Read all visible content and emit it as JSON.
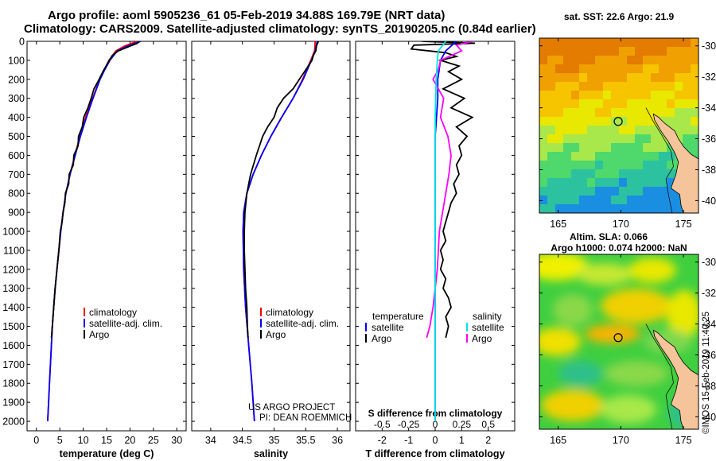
{
  "header": {
    "title_line1": "Argo profile: aoml 5905236_61 05-Feb-2019 34.88S 169.79E (NRT data)",
    "title_line2": "Climatology: CARS2009. Satellite-adjusted climatology: synTS_20190205.nc (0.84d earlier)"
  },
  "credit": {
    "line1": "US ARGO PROJECT",
    "line2": "PI: DEAN ROEMMICH"
  },
  "timestamp": "©IMOS 15-Feb-2019 11:40:25",
  "colors": {
    "climatology": "#ff0000",
    "satellite": "#0000ff",
    "argo": "#000000",
    "s_diff_argo": "#ff00ff",
    "s_diff_sat": "#00e5e5"
  },
  "chart_data": [
    {
      "type": "line",
      "id": "temperature",
      "xlabel": "temperature (deg C)",
      "ylabel": "",
      "xlim": [
        -2,
        32
      ],
      "ylim": [
        2050,
        0
      ],
      "xticks": [
        0,
        5,
        10,
        15,
        20,
        25,
        30
      ],
      "yticks": [
        0,
        100,
        200,
        300,
        400,
        500,
        600,
        700,
        800,
        900,
        1000,
        1100,
        1200,
        1300,
        1400,
        1500,
        1600,
        1700,
        1800,
        1900,
        2000
      ],
      "legend": [
        "climatology",
        "satellite-adj. clim.",
        "Argo"
      ],
      "legend_location": "center-right",
      "series": [
        {
          "name": "climatology",
          "depth": [
            0,
            25,
            50,
            100,
            150,
            200,
            300,
            400,
            500,
            600,
            700,
            800,
            900,
            1000,
            1100,
            1200,
            1300,
            1400,
            1500,
            1600,
            1700,
            1800,
            1900,
            2000
          ],
          "values": [
            21.5,
            18.8,
            17,
            15.5,
            14.5,
            13.5,
            12,
            10.5,
            9.3,
            8.2,
            7.2,
            6.3,
            5.7,
            5.2,
            4.8,
            4.4,
            4.0,
            3.7,
            3.4,
            3.2,
            3.0,
            2.8,
            2.6,
            2.4
          ]
        },
        {
          "name": "satellite-adj. clim.",
          "depth": [
            0,
            25,
            50,
            100,
            150,
            200,
            300,
            400,
            500,
            600,
            700,
            800,
            900,
            1000,
            1100,
            1200,
            1300,
            1400,
            1500,
            1600,
            1700,
            1800,
            1900,
            2000
          ],
          "values": [
            22.3,
            19.5,
            17.3,
            15.7,
            14.6,
            13.6,
            12.1,
            10.7,
            9.4,
            8.3,
            7.2,
            6.3,
            5.7,
            5.2,
            4.8,
            4.4,
            4.0,
            3.7,
            3.4,
            3.2,
            3.0,
            2.8,
            2.6,
            2.4
          ]
        },
        {
          "name": "Argo",
          "depth": [
            0,
            10,
            25,
            50,
            75,
            100,
            150,
            200,
            250,
            300,
            350,
            400,
            450,
            500,
            550,
            600,
            650,
            700,
            750,
            800,
            850,
            900,
            950,
            1000,
            1100,
            1200,
            1300,
            1400,
            1500,
            1560
          ],
          "values": [
            21.9,
            21.6,
            20,
            17.5,
            16.2,
            15.6,
            14.4,
            13.4,
            12.3,
            11.7,
            11.0,
            10.1,
            9.8,
            9.0,
            8.9,
            8.0,
            7.9,
            7.0,
            6.9,
            6.2,
            6.1,
            5.7,
            5.5,
            5.1,
            4.8,
            4.4,
            4.0,
            3.7,
            3.4,
            3.2
          ]
        }
      ]
    },
    {
      "type": "line",
      "id": "salinity",
      "xlabel": "salinity",
      "xlim": [
        33.7,
        36.2
      ],
      "ylim": [
        2050,
        0
      ],
      "xticks": [
        34,
        34.5,
        35,
        35.5,
        36
      ],
      "legend": [
        "climatology",
        "satellite-adj. clim.",
        "Argo"
      ],
      "legend_location": "center-right",
      "series": [
        {
          "name": "climatology",
          "depth": [
            0,
            50,
            100,
            200,
            300,
            400,
            500,
            600,
            700,
            800,
            900,
            1000,
            1200,
            1400,
            1600,
            1800,
            2000
          ],
          "values": [
            35.65,
            35.64,
            35.58,
            35.45,
            35.3,
            35.12,
            34.95,
            34.8,
            34.67,
            34.57,
            34.52,
            34.51,
            34.52,
            34.55,
            34.6,
            34.65,
            34.69
          ]
        },
        {
          "name": "satellite-adj. clim.",
          "depth": [
            0,
            50,
            100,
            200,
            300,
            400,
            500,
            600,
            700,
            800,
            900,
            1000,
            1200,
            1400,
            1600,
            1800,
            2000
          ],
          "values": [
            35.68,
            35.65,
            35.59,
            35.46,
            35.3,
            35.12,
            34.95,
            34.8,
            34.67,
            34.57,
            34.52,
            34.51,
            34.52,
            34.55,
            34.6,
            34.65,
            34.69
          ]
        },
        {
          "name": "Argo",
          "depth": [
            0,
            25,
            50,
            75,
            100,
            150,
            200,
            250,
            300,
            350,
            400,
            450,
            500,
            550,
            600,
            700,
            800,
            900,
            1000,
            1100,
            1200,
            1300,
            1400,
            1500,
            1560
          ],
          "values": [
            35.7,
            35.67,
            35.66,
            35.62,
            35.6,
            35.5,
            35.4,
            35.3,
            35.15,
            35.05,
            35.0,
            34.9,
            34.82,
            34.77,
            34.72,
            34.63,
            34.57,
            34.54,
            34.53,
            34.53,
            34.54,
            34.55,
            34.57,
            34.58,
            34.59
          ]
        }
      ]
    },
    {
      "type": "line",
      "id": "differences",
      "xlabel": "T difference from climatology",
      "xlabel2": "S difference from climatology",
      "xlim": [
        -3,
        3
      ],
      "ylim": [
        2050,
        0
      ],
      "xticks": [
        -2,
        -1,
        0,
        1,
        2
      ],
      "xticks_s": [
        "-0.5",
        "-0.25",
        "0",
        "0.25",
        "0.5"
      ],
      "legend_left": [
        "temperature",
        "satellite",
        "Argo"
      ],
      "legend_right": [
        "salinity",
        "satellite",
        "Argo"
      ],
      "series": [
        {
          "name": "T Argo",
          "depth": [
            0,
            10,
            20,
            40,
            60,
            80,
            100,
            130,
            160,
            200,
            250,
            300,
            350,
            400,
            450,
            500,
            550,
            600,
            650,
            700,
            750,
            800,
            850,
            900,
            950,
            1000,
            1050,
            1100,
            1150,
            1200,
            1250,
            1300,
            1350,
            1400,
            1450,
            1500,
            1560
          ],
          "values": [
            -0.5,
            1.5,
            -0.8,
            -0.9,
            0.4,
            0.8,
            0.2,
            0.9,
            0.5,
            1.0,
            0.3,
            1.1,
            0.6,
            1.4,
            0.8,
            1.2,
            0.9,
            1.0,
            0.8,
            0.9,
            0.7,
            0.8,
            0.6,
            0.5,
            0.4,
            0.3,
            0.4,
            0.2,
            0.3,
            0.2,
            0.4,
            0.3,
            0.5,
            0.6,
            0.4,
            0.5,
            0.4
          ]
        },
        {
          "name": "T satellite",
          "depth": [
            0,
            50,
            100,
            200,
            300,
            400,
            500,
            700,
            1000,
            1500,
            2000
          ],
          "values": [
            0.8,
            0.4,
            0.2,
            0.1,
            0.1,
            0.05,
            0.0,
            0.0,
            0.0,
            0.0,
            0.0
          ]
        },
        {
          "name": "S Argo",
          "depth": [
            0,
            20,
            50,
            100,
            150,
            200,
            300,
            400,
            500,
            600,
            700,
            800,
            1000,
            1200,
            1400,
            1500,
            1560
          ],
          "values": [
            0.35,
            0.2,
            0.25,
            0.05,
            0.03,
            -0.02,
            0.08,
            0.05,
            0.12,
            0.15,
            0.13,
            0.1,
            0.04,
            0.02,
            -0.02,
            -0.05,
            -0.08
          ]
        },
        {
          "name": "S satellite",
          "depth": [
            0,
            50,
            100,
            200,
            400,
            600,
            800,
            1000,
            1500,
            2000
          ],
          "values": [
            0.1,
            0.03,
            0.02,
            0.01,
            0.0,
            0.0,
            0.0,
            0.0,
            0.0,
            0.0
          ]
        }
      ]
    },
    {
      "type": "heatmap",
      "id": "sst_map",
      "title": "sat. SST: 22.6 Argo: 21.9",
      "xticks": [
        165,
        170,
        175
      ],
      "yticks": [
        -30,
        -32,
        -34,
        -36,
        -38,
        -40
      ],
      "xlim": [
        163.5,
        176.2
      ],
      "ylim": [
        -40.8,
        -29.5
      ],
      "argo_position": [
        169.79,
        -34.88
      ]
    },
    {
      "type": "heatmap",
      "id": "sla_map",
      "title_line1": "Altim. SLA: 0.066",
      "title_line2": "Argo h1000: 0.074 h2000: NaN",
      "xticks": [
        165,
        170,
        175
      ],
      "yticks": [
        -30,
        -32,
        -34,
        -36,
        -38,
        -40
      ],
      "xlim": [
        163.5,
        176.2
      ],
      "ylim": [
        -40.8,
        -29.5
      ],
      "argo_position": [
        169.79,
        -34.88
      ]
    }
  ]
}
